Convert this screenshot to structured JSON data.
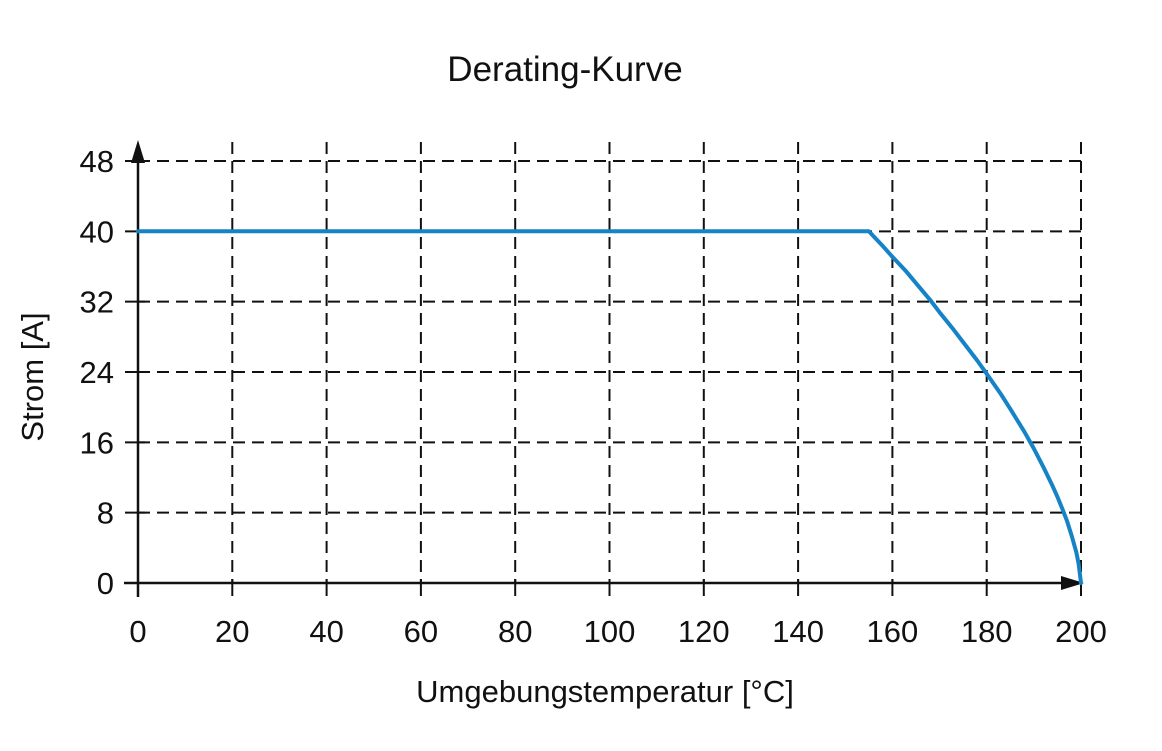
{
  "chart_data": {
    "type": "line",
    "title": "Derating-Kurve",
    "xlabel": "Umgebungstemperatur [°C]",
    "ylabel": "Strom [A]",
    "xlim": [
      0,
      200
    ],
    "ylim": [
      0,
      48
    ],
    "x_ticks": [
      0,
      20,
      40,
      60,
      80,
      100,
      120,
      140,
      160,
      180,
      200
    ],
    "y_ticks": [
      0,
      8,
      16,
      24,
      32,
      40,
      48
    ],
    "grid": "dashed",
    "legend_position": "none",
    "axis_color": "#111111",
    "background_color": "#ffffff",
    "series": [
      {
        "name": "Strom",
        "color": "#1583c5",
        "points": [
          [
            0,
            40
          ],
          [
            155,
            40
          ],
          [
            158,
            38.3
          ],
          [
            160,
            37.1
          ],
          [
            163,
            35.4
          ],
          [
            165,
            34.1
          ],
          [
            168,
            32.2
          ],
          [
            170,
            30.8
          ],
          [
            173,
            28.8
          ],
          [
            175,
            27.4
          ],
          [
            178,
            25.3
          ],
          [
            180,
            23.8
          ],
          [
            183,
            21.5
          ],
          [
            185,
            19.8
          ],
          [
            188,
            17.2
          ],
          [
            190,
            15.3
          ],
          [
            192,
            13.2
          ],
          [
            194,
            11.0
          ],
          [
            195,
            9.8
          ],
          [
            196,
            8.5
          ],
          [
            197,
            7.1
          ],
          [
            198,
            5.4
          ],
          [
            199,
            3.5
          ],
          [
            199.5,
            2.2
          ],
          [
            200,
            0
          ]
        ]
      }
    ]
  }
}
